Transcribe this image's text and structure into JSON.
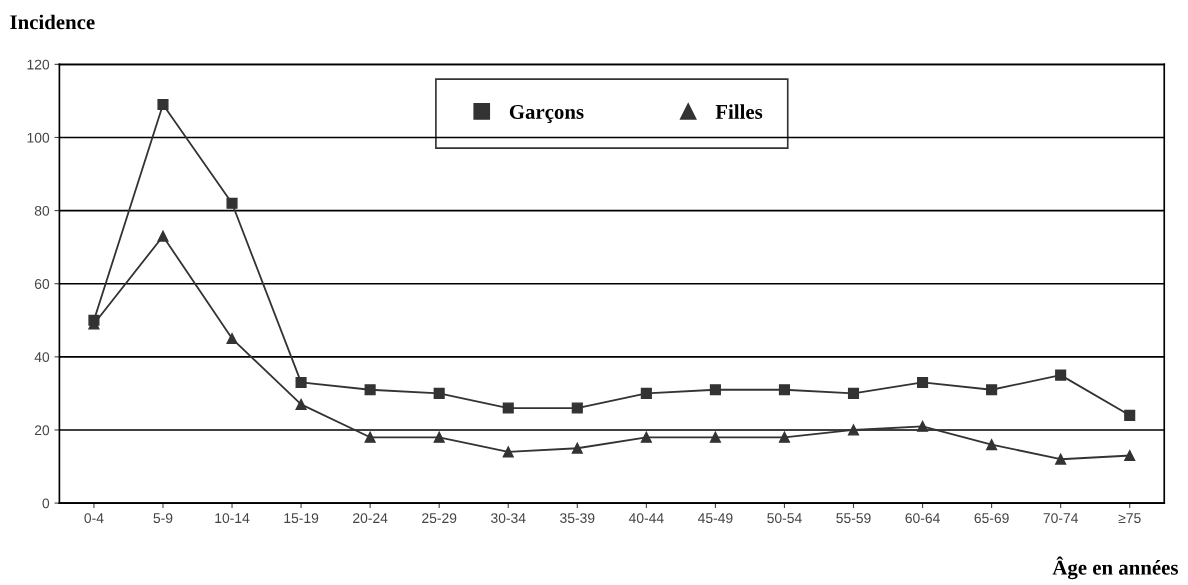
{
  "chart_data": {
    "type": "line",
    "ylabel": "Incidence",
    "xlabel": "Âge en années",
    "categories": [
      "0-4",
      "5-9",
      "10-14",
      "15-19",
      "20-24",
      "25-29",
      "30-34",
      "35-39",
      "40-44",
      "45-49",
      "50-54",
      "55-59",
      "60-64",
      "65-69",
      "70-74",
      "≥75"
    ],
    "series": [
      {
        "name": "Garçons",
        "color": "#333333",
        "marker": "square",
        "values": [
          50,
          109,
          82,
          33,
          31,
          30,
          26,
          26,
          30,
          31,
          31,
          30,
          33,
          31,
          35,
          24
        ]
      },
      {
        "name": "Filles",
        "color": "#333333",
        "marker": "triangle",
        "values": [
          49,
          73,
          45,
          27,
          18,
          18,
          14,
          15,
          18,
          18,
          18,
          20,
          21,
          16,
          12,
          13
        ]
      }
    ],
    "ylim": [
      0,
      120
    ],
    "yticks": [
      0,
      20,
      40,
      60,
      80,
      100,
      120
    ],
    "grid": "y",
    "legend": "top",
    "line_style": "solid"
  }
}
